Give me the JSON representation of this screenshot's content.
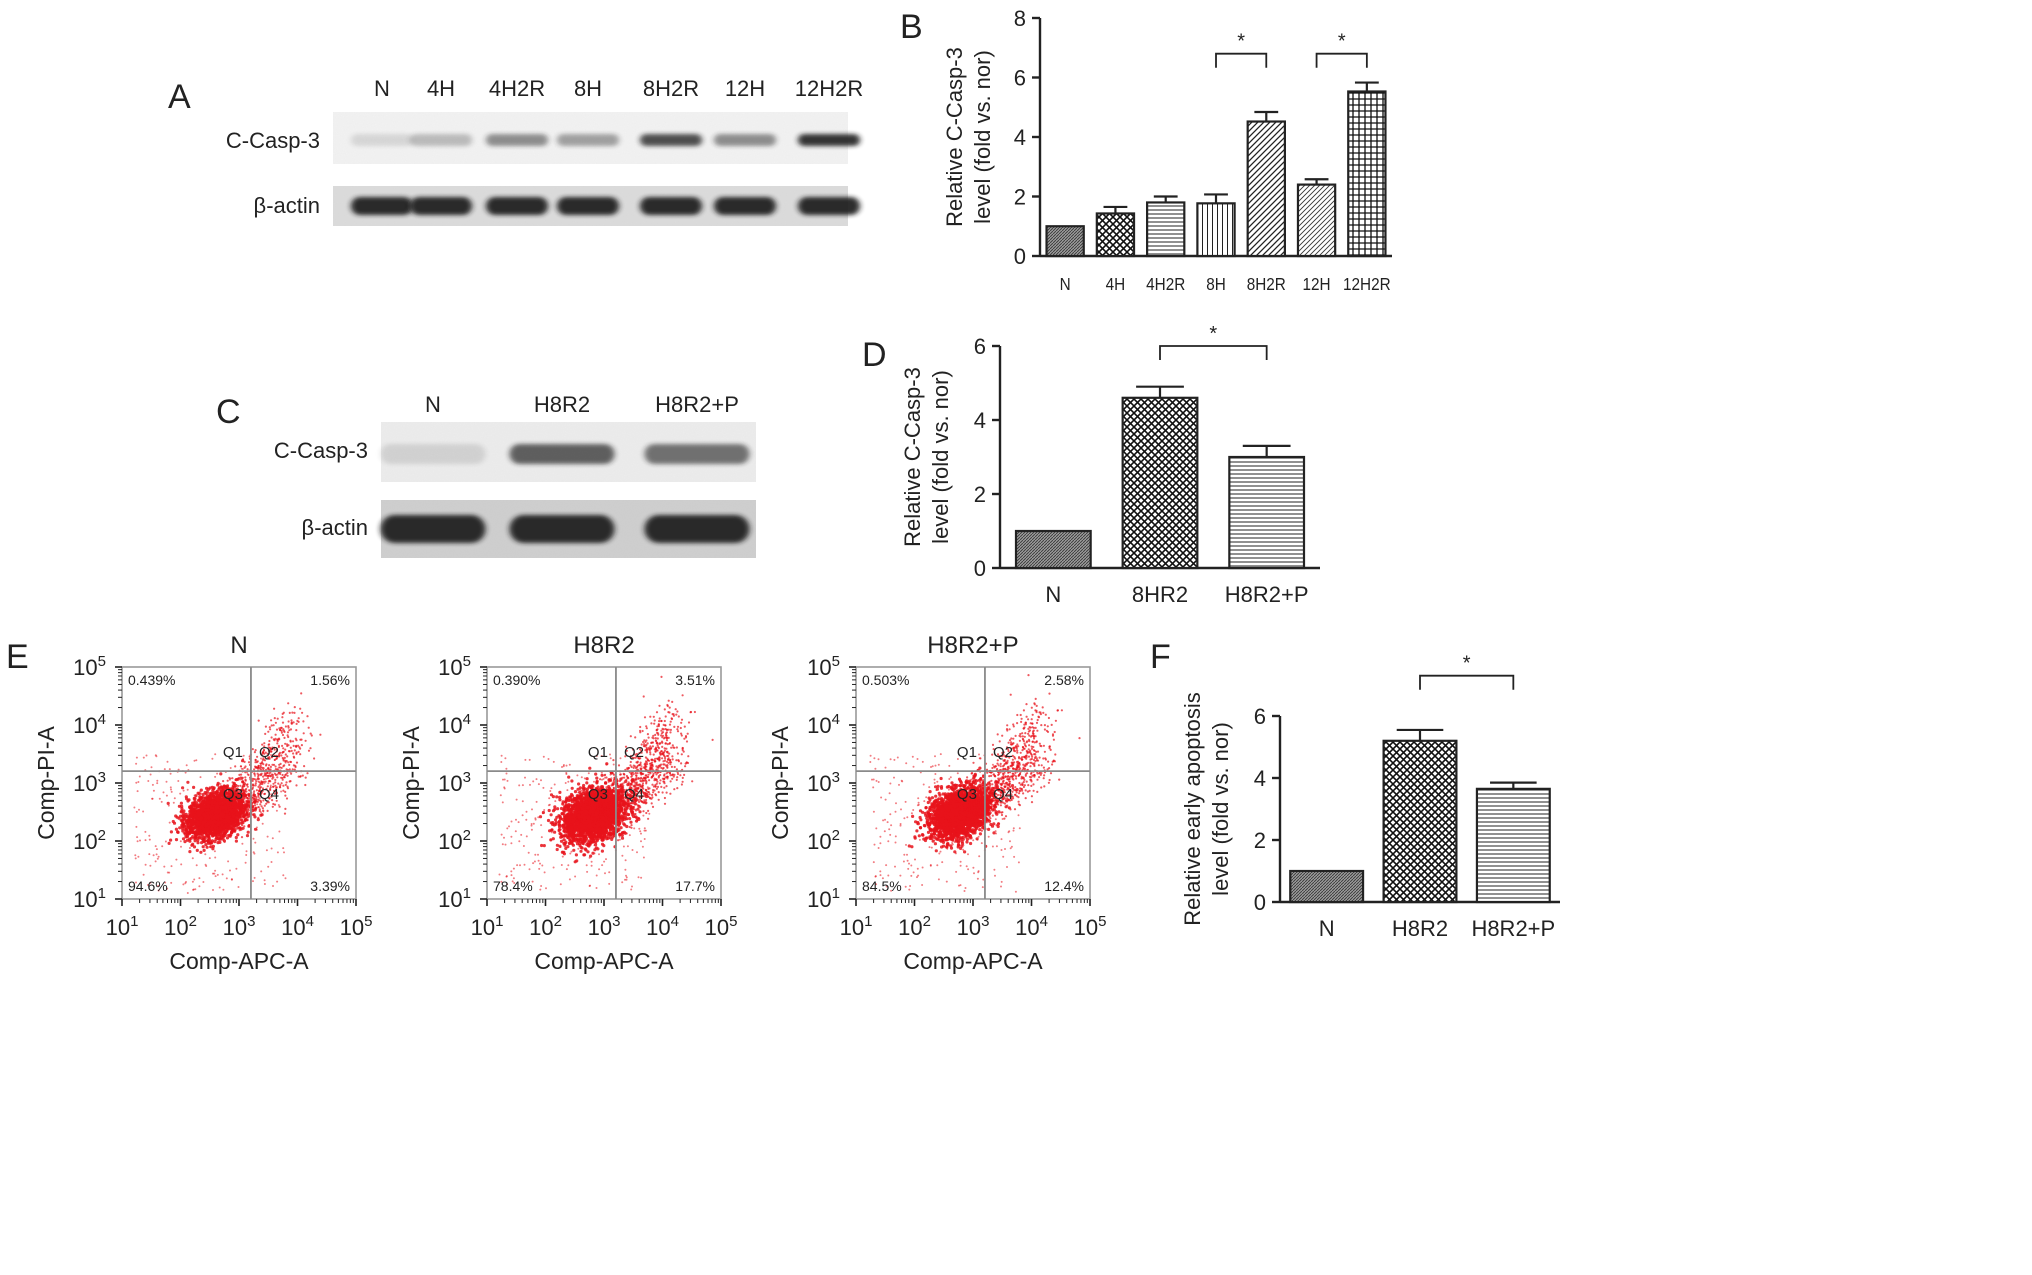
{
  "panel_letters": {
    "a": "A",
    "b": "B",
    "c": "C",
    "d": "D",
    "e": "E",
    "f": "F"
  },
  "blot_a": {
    "lanes": [
      "N",
      "4H",
      "4H2R",
      "8H",
      "8H2R",
      "12H",
      "12H2R"
    ],
    "rows": [
      "C-Casp-3",
      "β-actin"
    ],
    "casp_intensity": [
      0.05,
      0.2,
      0.45,
      0.35,
      0.8,
      0.45,
      0.95
    ]
  },
  "blot_c": {
    "lanes": [
      "N",
      "H8R2",
      "H8R2+P"
    ],
    "rows": [
      "C-Casp-3",
      "β-actin"
    ],
    "casp_intensity": [
      0.05,
      0.7,
      0.6
    ]
  },
  "colors": {
    "axis": "#222222",
    "bar_fill": "#b0b0b0",
    "dot": "#e8131b",
    "band": "#1a1a1a",
    "gate": "#8a8a8a"
  },
  "chart_data": [
    {
      "id": "B",
      "type": "bar",
      "categories": [
        "N",
        "4H",
        "4H2R",
        "8H",
        "8H2R",
        "12H",
        "12H2R"
      ],
      "values": [
        1.0,
        1.43,
        1.8,
        1.77,
        4.52,
        2.4,
        5.53
      ],
      "errors": [
        0.0,
        0.22,
        0.2,
        0.3,
        0.32,
        0.18,
        0.3
      ],
      "patterns": [
        "dense",
        "check",
        "hlines",
        "vlines",
        "diag",
        "diag2",
        "grid"
      ],
      "ylabel": [
        "Relative C-Casp-3",
        "level (fold vs. nor)"
      ],
      "ylim": [
        0,
        8
      ],
      "yticks": [
        0,
        2,
        4,
        6,
        8
      ],
      "significance": [
        {
          "from": 3,
          "to": 4,
          "label": "*",
          "y": 6.8
        },
        {
          "from": 5,
          "to": 6,
          "label": "*",
          "y": 6.8
        }
      ]
    },
    {
      "id": "D",
      "type": "bar",
      "categories": [
        "N",
        "8HR2",
        "H8R2+P"
      ],
      "values": [
        1.0,
        4.6,
        3.0
      ],
      "errors": [
        0.0,
        0.3,
        0.3
      ],
      "patterns": [
        "dense",
        "check",
        "hlines"
      ],
      "ylabel": [
        "Relative C-Casp-3",
        "level (fold vs. nor)"
      ],
      "ylim": [
        0,
        6
      ],
      "yticks": [
        0,
        2,
        4,
        6
      ],
      "significance": [
        {
          "from": 1,
          "to": 2,
          "label": "*",
          "y": 6.0
        }
      ]
    },
    {
      "id": "F",
      "type": "bar",
      "categories": [
        "N",
        "H8R2",
        "H8R2+P"
      ],
      "values": [
        1.0,
        5.2,
        3.65
      ],
      "errors": [
        0.0,
        0.35,
        0.2
      ],
      "patterns": [
        "dense",
        "check",
        "hlines"
      ],
      "ylabel": [
        "Relative early apoptosis",
        "level (fold vs. nor)"
      ],
      "ylim": [
        0,
        6
      ],
      "yticks": [
        0,
        2,
        4,
        6
      ],
      "significance": [
        {
          "from": 1,
          "to": 2,
          "label": "*",
          "y": 7.3
        }
      ]
    },
    {
      "id": "E",
      "type": "scatter",
      "xlabel": "Comp-APC-A",
      "ylabel": "Comp-PI-A",
      "log_scale": true,
      "xlim": [
        10,
        100000
      ],
      "ylim": [
        10,
        100000
      ],
      "ticks": [
        "10^1",
        "10^2",
        "10^3",
        "10^4",
        "10^5"
      ],
      "gate_x": 1600,
      "gate_y": 1600,
      "quadrant_labels": [
        "Q1",
        "Q2",
        "Q3",
        "Q4"
      ],
      "plots": [
        {
          "title": "N",
          "quadrants": {
            "Q1": "0.439%",
            "Q2": "1.56%",
            "Q3": "94.6%",
            "Q4": "3.39%"
          },
          "cluster_x": 400,
          "cluster_y": 280,
          "spread": 0.32,
          "tail": 0.04
        },
        {
          "title": "H8R2",
          "quadrants": {
            "Q1": "0.390%",
            "Q2": "3.51%",
            "Q3": "78.4%",
            "Q4": "17.7%"
          },
          "cluster_x": 650,
          "cluster_y": 280,
          "spread": 0.36,
          "tail": 0.18
        },
        {
          "title": "H8R2+P",
          "quadrants": {
            "Q1": "0.503%",
            "Q2": "2.58%",
            "Q3": "84.5%",
            "Q4": "12.4%"
          },
          "cluster_x": 600,
          "cluster_y": 300,
          "spread": 0.34,
          "tail": 0.12
        }
      ]
    }
  ]
}
